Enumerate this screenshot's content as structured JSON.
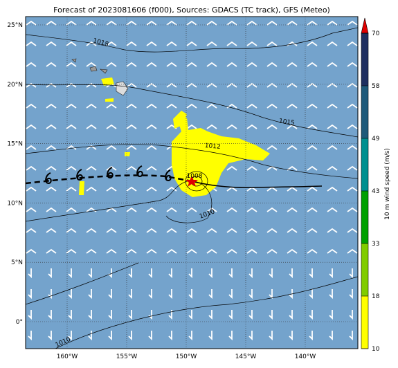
{
  "title": "Forecast of 2023081606 (f000), Sources: GDACS (TC track), GFS (Meteo)",
  "map": {
    "lat_labels": [
      "25°N",
      "20°N",
      "15°N",
      "10°N",
      "5°N",
      "0°"
    ],
    "lon_labels": [
      "160°W",
      "155°W",
      "150°W",
      "145°W",
      "140°W"
    ],
    "isobar_labels": [
      "1018",
      "1015",
      "1012",
      "1008",
      "1010",
      "1010"
    ]
  },
  "colorbar": {
    "label": "10 m wind speed (m/s)",
    "ticks": [
      10,
      18,
      33,
      43,
      49,
      58,
      70
    ],
    "colors": [
      "#ffff00",
      "#80cc00",
      "#00a000",
      "#009090",
      "#1f5a7a",
      "#1f2f5f"
    ],
    "extend_color": "#e00000"
  }
}
